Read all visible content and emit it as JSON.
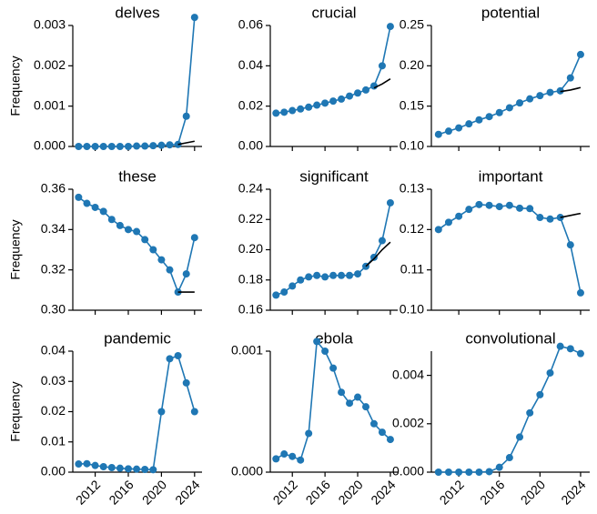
{
  "chart_data": [
    {
      "type": "line",
      "title": "delves",
      "ylabel": "Frequency",
      "x": [
        2010,
        2011,
        2012,
        2013,
        2014,
        2015,
        2016,
        2017,
        2018,
        2019,
        2020,
        2021,
        2022,
        2023,
        2024
      ],
      "xlim": [
        2009.3,
        2024.9
      ],
      "xticks": [
        2012,
        2016,
        2020,
        2024
      ],
      "x_tick_labels": false,
      "series": [
        {
          "color": "#1f77b4",
          "marker": "o",
          "values": [
            0,
            0,
            0,
            0,
            0,
            0,
            0,
            1e-05,
            1e-05,
            2e-05,
            3e-05,
            4e-05,
            5e-05,
            0.00075,
            0.0032
          ]
        },
        {
          "color": "#000000",
          "values": [
            null,
            null,
            null,
            null,
            null,
            null,
            null,
            null,
            null,
            null,
            null,
            null,
            5e-05,
            9e-05,
            0.00013
          ]
        }
      ],
      "ylim": [
        0,
        0.003
      ],
      "yticks": [
        {
          "value": 0,
          "label": "0.000"
        },
        {
          "value": 0.001,
          "label": "0.001"
        },
        {
          "value": 0.002,
          "label": "0.002"
        },
        {
          "value": 0.003,
          "label": "0.003"
        }
      ]
    },
    {
      "type": "line",
      "title": "crucial",
      "x": [
        2010,
        2011,
        2012,
        2013,
        2014,
        2015,
        2016,
        2017,
        2018,
        2019,
        2020,
        2021,
        2022,
        2023,
        2024
      ],
      "xlim": [
        2009.3,
        2024.9
      ],
      "xticks": [
        2012,
        2016,
        2020,
        2024
      ],
      "x_tick_labels": false,
      "series": [
        {
          "color": "#1f77b4",
          "marker": "o",
          "values": [
            0.0165,
            0.017,
            0.0178,
            0.0186,
            0.0195,
            0.0205,
            0.0215,
            0.0225,
            0.0235,
            0.025,
            0.0265,
            0.028,
            0.03,
            0.04,
            0.0595
          ]
        },
        {
          "color": "#000000",
          "values": [
            null,
            null,
            null,
            null,
            null,
            null,
            null,
            null,
            null,
            null,
            null,
            null,
            0.029,
            0.031,
            0.0335
          ]
        }
      ],
      "ylim": [
        0,
        0.06
      ],
      "yticks": [
        {
          "value": 0,
          "label": "0.00"
        },
        {
          "value": 0.02,
          "label": "0.02"
        },
        {
          "value": 0.04,
          "label": "0.04"
        },
        {
          "value": 0.06,
          "label": "0.06"
        }
      ]
    },
    {
      "type": "line",
      "title": "potential",
      "x": [
        2010,
        2011,
        2012,
        2013,
        2014,
        2015,
        2016,
        2017,
        2018,
        2019,
        2020,
        2021,
        2022,
        2023,
        2024
      ],
      "xlim": [
        2009.3,
        2024.9
      ],
      "xticks": [
        2012,
        2016,
        2020,
        2024
      ],
      "x_tick_labels": false,
      "series": [
        {
          "color": "#1f77b4",
          "marker": "o",
          "values": [
            0.115,
            0.119,
            0.123,
            0.128,
            0.133,
            0.137,
            0.142,
            0.148,
            0.154,
            0.159,
            0.163,
            0.167,
            0.169,
            0.185,
            0.214
          ]
        },
        {
          "color": "#000000",
          "values": [
            null,
            null,
            null,
            null,
            null,
            null,
            null,
            null,
            null,
            null,
            null,
            null,
            0.168,
            0.17,
            0.173
          ]
        }
      ],
      "ylim": [
        0.1,
        0.25
      ],
      "yticks": [
        {
          "value": 0.1,
          "label": "0.10"
        },
        {
          "value": 0.15,
          "label": "0.15"
        },
        {
          "value": 0.2,
          "label": "0.20"
        },
        {
          "value": 0.25,
          "label": "0.25"
        }
      ]
    },
    {
      "type": "line",
      "title": "these",
      "ylabel": "Frequency",
      "x": [
        2010,
        2011,
        2012,
        2013,
        2014,
        2015,
        2016,
        2017,
        2018,
        2019,
        2020,
        2021,
        2022,
        2023,
        2024
      ],
      "xlim": [
        2009.3,
        2024.9
      ],
      "xticks": [
        2012,
        2016,
        2020,
        2024
      ],
      "x_tick_labels": false,
      "series": [
        {
          "color": "#1f77b4",
          "marker": "o",
          "values": [
            0.356,
            0.353,
            0.351,
            0.349,
            0.345,
            0.342,
            0.34,
            0.339,
            0.335,
            0.33,
            0.325,
            0.32,
            0.309,
            0.318,
            0.336
          ]
        },
        {
          "color": "#000000",
          "values": [
            null,
            null,
            null,
            null,
            null,
            null,
            null,
            null,
            null,
            null,
            null,
            null,
            0.309,
            0.309,
            0.309
          ]
        }
      ],
      "ylim": [
        0.3,
        0.36
      ],
      "yticks": [
        {
          "value": 0.3,
          "label": "0.30"
        },
        {
          "value": 0.32,
          "label": "0.32"
        },
        {
          "value": 0.34,
          "label": "0.34"
        },
        {
          "value": 0.36,
          "label": "0.36"
        }
      ]
    },
    {
      "type": "line",
      "title": "significant",
      "x": [
        2010,
        2011,
        2012,
        2013,
        2014,
        2015,
        2016,
        2017,
        2018,
        2019,
        2020,
        2021,
        2022,
        2023,
        2024
      ],
      "xlim": [
        2009.3,
        2024.9
      ],
      "xticks": [
        2012,
        2016,
        2020,
        2024
      ],
      "x_tick_labels": false,
      "series": [
        {
          "color": "#1f77b4",
          "marker": "o",
          "values": [
            0.17,
            0.172,
            0.176,
            0.18,
            0.182,
            0.183,
            0.182,
            0.183,
            0.183,
            0.183,
            0.184,
            0.189,
            0.195,
            0.206,
            0.231
          ]
        },
        {
          "color": "#000000",
          "values": [
            null,
            null,
            null,
            null,
            null,
            null,
            null,
            null,
            null,
            null,
            null,
            0.189,
            0.194,
            0.2,
            0.205
          ]
        }
      ],
      "ylim": [
        0.16,
        0.24
      ],
      "yticks": [
        {
          "value": 0.16,
          "label": "0.16"
        },
        {
          "value": 0.18,
          "label": "0.18"
        },
        {
          "value": 0.2,
          "label": "0.20"
        },
        {
          "value": 0.22,
          "label": "0.22"
        },
        {
          "value": 0.24,
          "label": "0.24"
        }
      ]
    },
    {
      "type": "line",
      "title": "important",
      "x": [
        2010,
        2011,
        2012,
        2013,
        2014,
        2015,
        2016,
        2017,
        2018,
        2019,
        2020,
        2021,
        2022,
        2023,
        2024
      ],
      "xlim": [
        2009.3,
        2024.9
      ],
      "xticks": [
        2012,
        2016,
        2020,
        2024
      ],
      "x_tick_labels": false,
      "series": [
        {
          "color": "#1f77b4",
          "marker": "o",
          "values": [
            0.12,
            0.1218,
            0.1233,
            0.125,
            0.1262,
            0.126,
            0.1257,
            0.126,
            0.1253,
            0.1252,
            0.123,
            0.1226,
            0.123,
            0.1162,
            0.1043
          ]
        },
        {
          "color": "#000000",
          "values": [
            null,
            null,
            null,
            null,
            null,
            null,
            null,
            null,
            null,
            null,
            null,
            null,
            0.123,
            0.1235,
            0.124
          ]
        }
      ],
      "ylim": [
        0.1,
        0.13
      ],
      "yticks": [
        {
          "value": 0.1,
          "label": "0.10"
        },
        {
          "value": 0.11,
          "label": "0.11"
        },
        {
          "value": 0.12,
          "label": "0.12"
        },
        {
          "value": 0.13,
          "label": "0.13"
        }
      ]
    },
    {
      "type": "line",
      "title": "pandemic",
      "ylabel": "Frequency",
      "x": [
        2010,
        2011,
        2012,
        2013,
        2014,
        2015,
        2016,
        2017,
        2018,
        2019,
        2020,
        2021,
        2022,
        2023,
        2024
      ],
      "xlim": [
        2009.3,
        2024.9
      ],
      "xticks": [
        2012,
        2016,
        2020,
        2024
      ],
      "x_tick_labels": true,
      "series": [
        {
          "color": "#1f77b4",
          "marker": "o",
          "values": [
            0.0027,
            0.0028,
            0.0022,
            0.0018,
            0.0015,
            0.0013,
            0.0011,
            0.001,
            0.0009,
            0.0008,
            0.02,
            0.0375,
            0.0385,
            0.0295,
            0.02
          ]
        }
      ],
      "ylim": [
        0,
        0.04
      ],
      "yticks": [
        {
          "value": 0,
          "label": "0.00"
        },
        {
          "value": 0.01,
          "label": "0.01"
        },
        {
          "value": 0.02,
          "label": "0.02"
        },
        {
          "value": 0.03,
          "label": "0.03"
        },
        {
          "value": 0.04,
          "label": "0.04"
        }
      ]
    },
    {
      "type": "line",
      "title": "ebola",
      "x": [
        2010,
        2011,
        2012,
        2013,
        2014,
        2015,
        2016,
        2017,
        2018,
        2019,
        2020,
        2021,
        2022,
        2023,
        2024
      ],
      "xlim": [
        2009.3,
        2024.9
      ],
      "xticks": [
        2012,
        2016,
        2020,
        2024
      ],
      "x_tick_labels": true,
      "series": [
        {
          "color": "#1f77b4",
          "marker": "o",
          "values": [
            0.00011,
            0.00015,
            0.00013,
            0.0001,
            0.00032,
            0.00108,
            0.001,
            0.00086,
            0.00066,
            0.00057,
            0.00062,
            0.00054,
            0.0004,
            0.00033,
            0.00027
          ]
        }
      ],
      "ylim": [
        0,
        0.001
      ],
      "yticks": [
        {
          "value": 0,
          "label": "0.000"
        },
        {
          "value": 0.001,
          "label": "0.001"
        }
      ]
    },
    {
      "type": "line",
      "title": "convolutional",
      "x": [
        2010,
        2011,
        2012,
        2013,
        2014,
        2015,
        2016,
        2017,
        2018,
        2019,
        2020,
        2021,
        2022,
        2023,
        2024
      ],
      "xlim": [
        2009.3,
        2024.9
      ],
      "xticks": [
        2012,
        2016,
        2020,
        2024
      ],
      "x_tick_labels": true,
      "series": [
        {
          "color": "#1f77b4",
          "marker": "o",
          "values": [
            0,
            0,
            0,
            0,
            0,
            2e-05,
            0.0002,
            0.0006,
            0.00145,
            0.00245,
            0.0032,
            0.0041,
            0.0052,
            0.0051,
            0.0049
          ]
        }
      ],
      "ylim": [
        0,
        0.005
      ],
      "yticks": [
        {
          "value": 0,
          "label": "0.000"
        },
        {
          "value": 0.002,
          "label": "0.002"
        },
        {
          "value": 0.004,
          "label": "0.004"
        }
      ]
    }
  ]
}
